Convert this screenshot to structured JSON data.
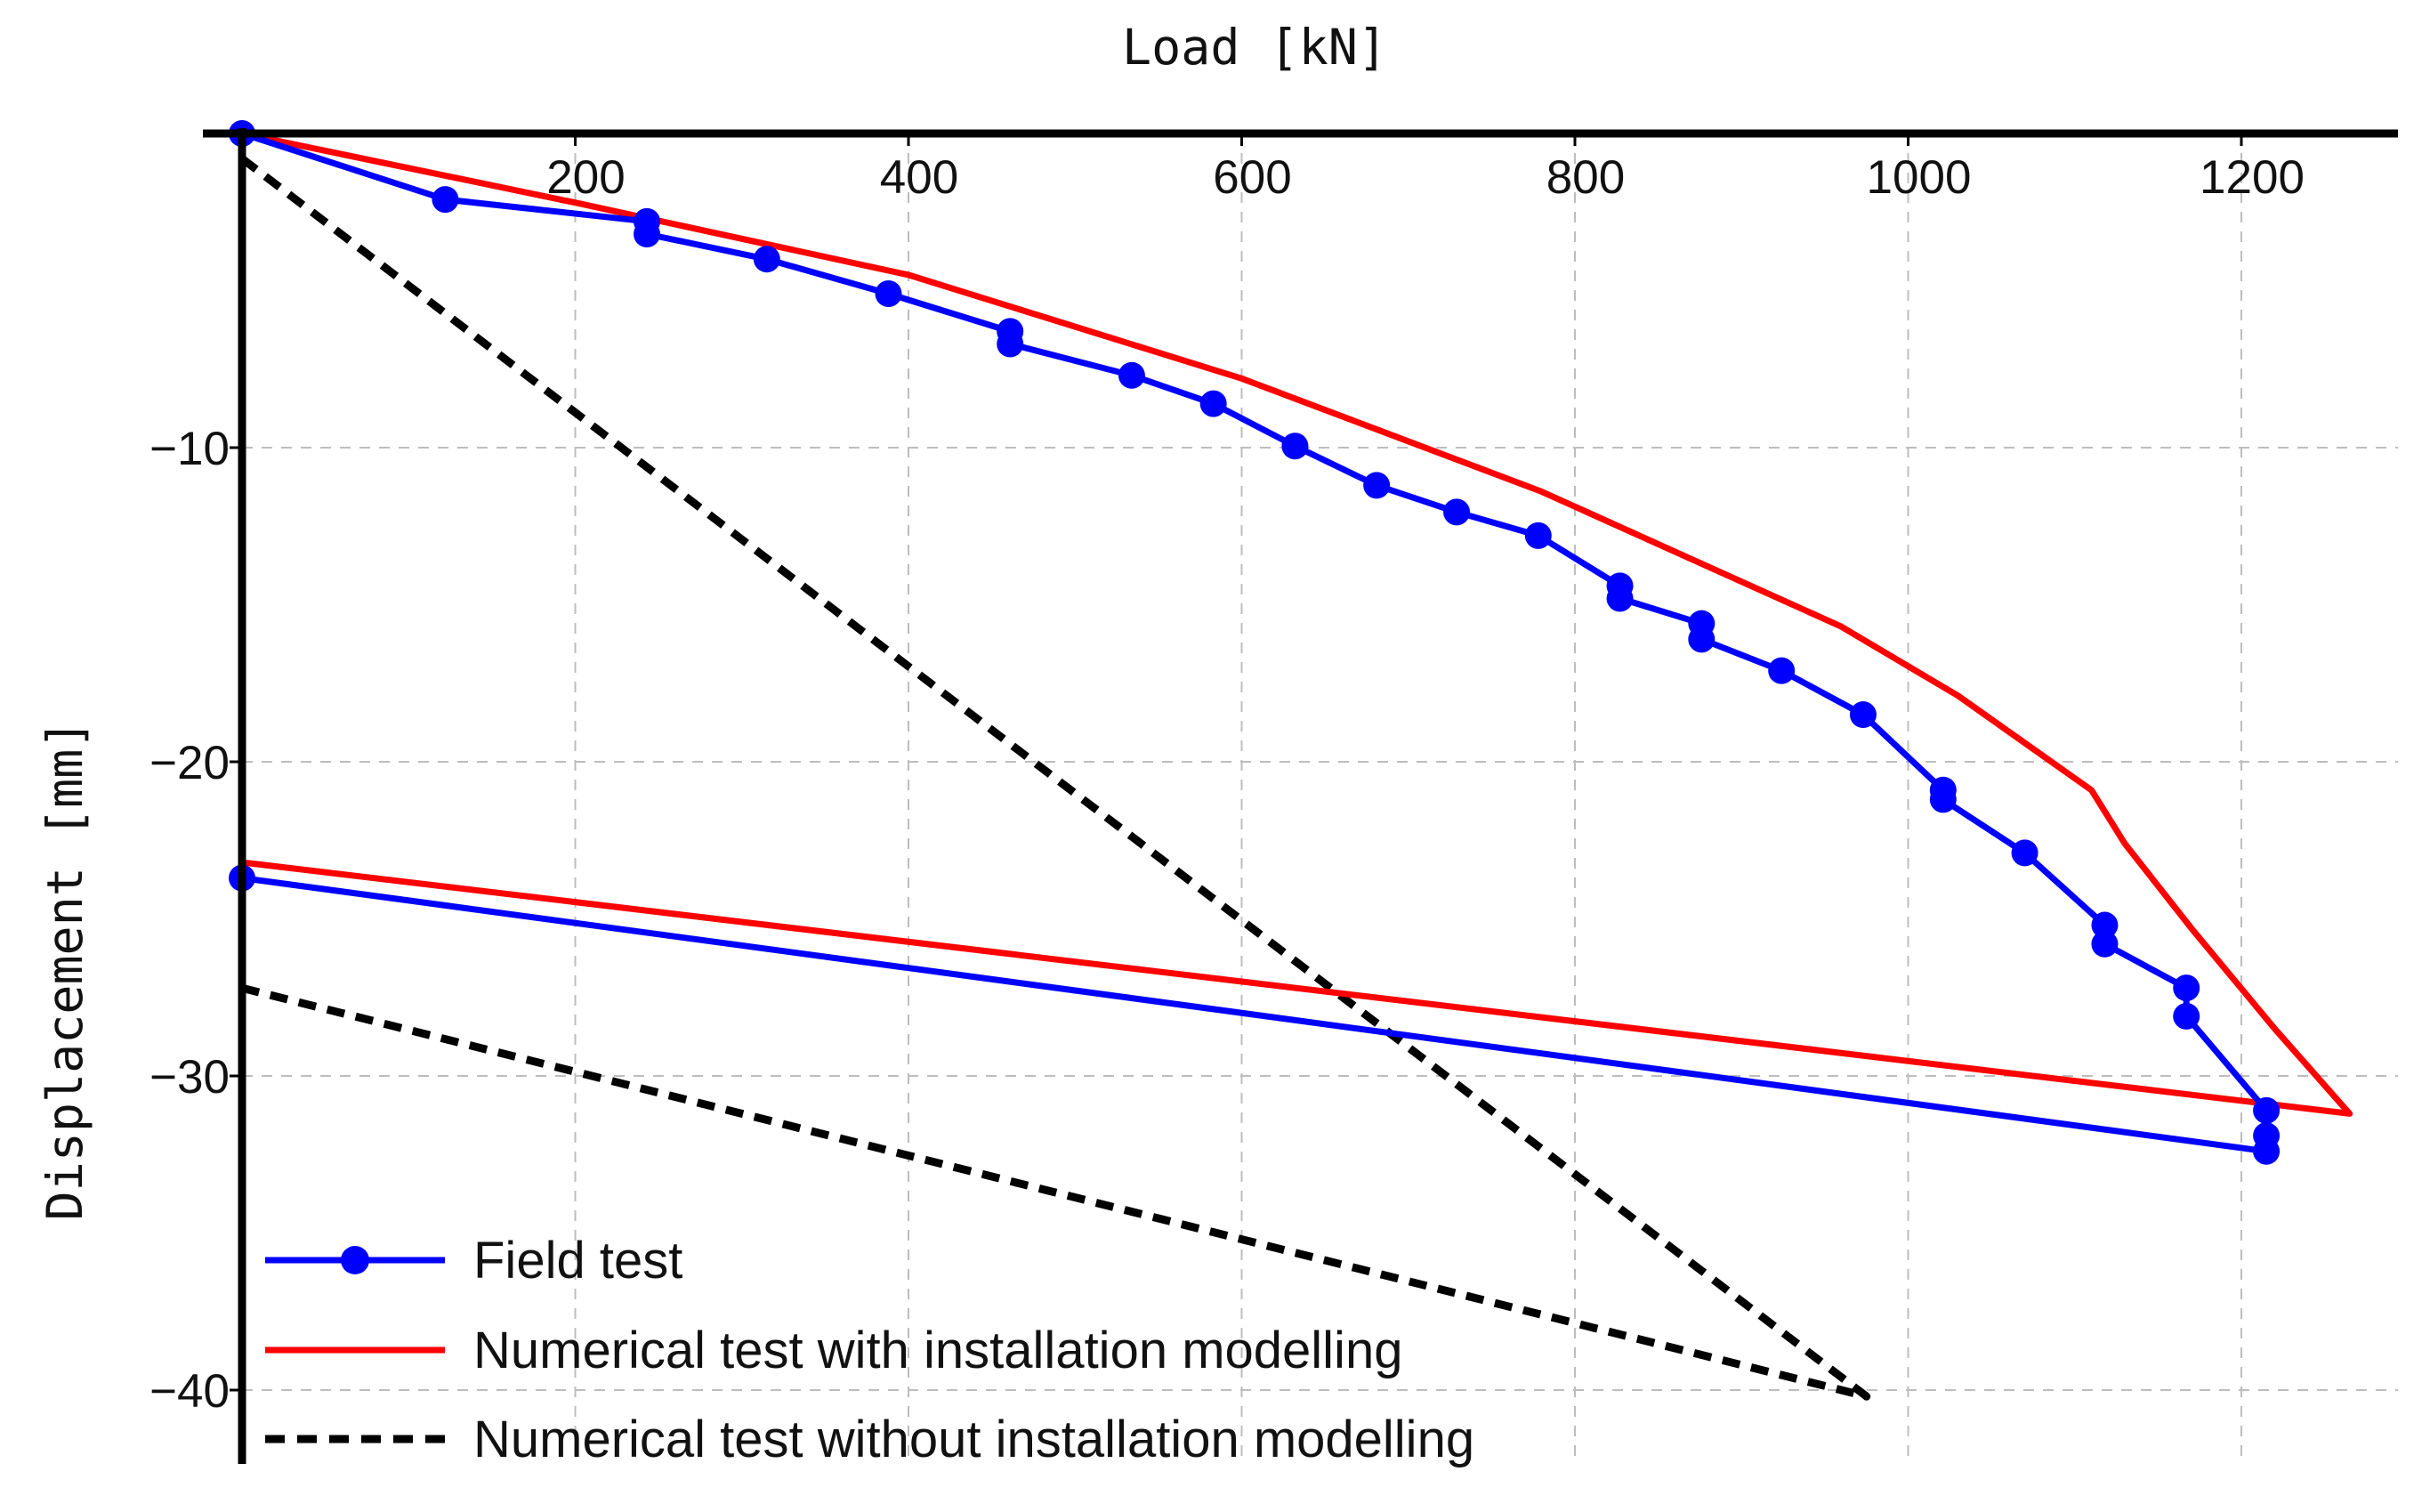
{
  "chart_data": {
    "type": "line",
    "title": "",
    "xlabel": "Load [kN]",
    "ylabel": "Displacement [mm]",
    "xlim": [
      0,
      1280
    ],
    "ylim": [
      -42.5,
      0
    ],
    "x_ticks": [
      200,
      400,
      600,
      800,
      1000,
      1200
    ],
    "x_tick_labels": [
      "200",
      "400",
      "600",
      "800",
      "1000",
      "1200"
    ],
    "y_ticks": [
      -10,
      -20,
      -30,
      -40
    ],
    "y_tick_labels": [
      "−10",
      "−20",
      "−30",
      "−40"
    ],
    "x_axis_position": "top",
    "grid": true,
    "legend_position": "bottom-left",
    "series": [
      {
        "name": "Field test",
        "color": "#0000ff",
        "style": "solid",
        "markers": true,
        "x": [
          0,
          122,
          243,
          243,
          315,
          388,
          461,
          461,
          534,
          583,
          632,
          681,
          729,
          778,
          827,
          827,
          876,
          876,
          924,
          973,
          1021,
          1021,
          1070,
          1118,
          1118,
          1167,
          1167,
          1215,
          1215,
          1215,
          0
        ],
        "y": [
          0,
          -2.1,
          -2.8,
          -3.2,
          -4.0,
          -5.1,
          -6.3,
          -6.7,
          -7.7,
          -8.6,
          -9.95,
          -11.2,
          -12.05,
          -12.8,
          -14.4,
          -14.8,
          -15.6,
          -16.1,
          -17.1,
          -18.5,
          -20.9,
          -21.2,
          -22.9,
          -25.2,
          -25.8,
          -27.2,
          -28.1,
          -31.1,
          -31.9,
          -32.4,
          -23.7
        ]
      },
      {
        "name": "Numerical test with installation modelling",
        "color": "#ff0000",
        "style": "solid",
        "markers": false,
        "x": [
          0,
          200,
          400,
          600,
          780,
          960,
          1030,
          1110,
          1130,
          1170,
          1220,
          1265,
          0
        ],
        "y": [
          0,
          -2.2,
          -4.5,
          -7.8,
          -11.4,
          -15.7,
          -17.9,
          -20.9,
          -22.6,
          -25.3,
          -28.5,
          -31.2,
          -23.2
        ]
      },
      {
        "name": "Numerical test without installation modelling",
        "color": "#000000",
        "style": "dashed",
        "markers": false,
        "x": [
          0,
          975,
          0
        ],
        "y": [
          -0.8,
          -40.2,
          -27.2
        ]
      }
    ]
  }
}
